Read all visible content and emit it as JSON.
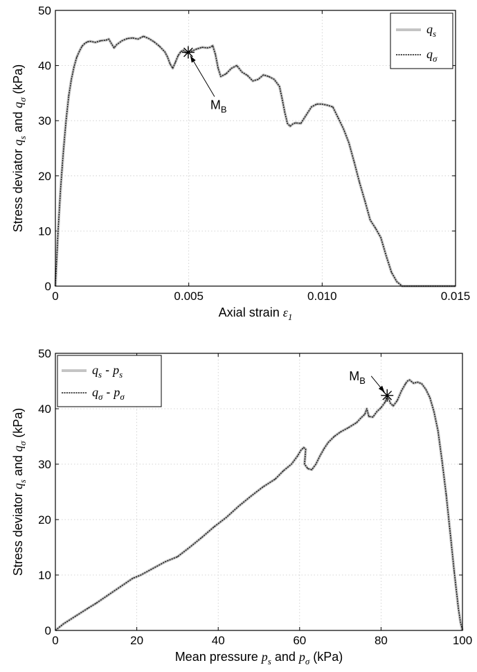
{
  "chart_data": [
    {
      "type": "line",
      "xlabel_text": "Axial strain ",
      "xlabel_symbol": "ε",
      "xlabel_sub": "1",
      "ylabel_parts": [
        "Stress deviator ",
        "q",
        "s",
        " and ",
        "q",
        "σ",
        " (kPa)"
      ],
      "xlim": [
        0,
        0.015
      ],
      "ylim": [
        0,
        50
      ],
      "x_ticks": [
        0,
        0.005,
        0.01,
        0.015
      ],
      "x_tick_labels": [
        "0",
        "0.005",
        "0.010",
        "0.015"
      ],
      "y_ticks": [
        0,
        10,
        20,
        30,
        40,
        50
      ],
      "y_tick_labels": [
        "0",
        "10",
        "20",
        "30",
        "40",
        "50"
      ],
      "grid": true,
      "legend_position": "top-right",
      "legend": [
        {
          "sym": "q",
          "sub": "s",
          "style": "solid-gray"
        },
        {
          "sym": "q",
          "sub": "σ",
          "style": "dotted-black"
        }
      ],
      "annotation": {
        "text": "M",
        "sub": "B",
        "x": 0.00498,
        "y": 42.4
      },
      "series": [
        {
          "name": "q_s / q_σ",
          "x": [
            0,
            0.0001,
            0.0002,
            0.0003,
            0.0004,
            0.0005,
            0.0006,
            0.0007,
            0.0008,
            0.0009,
            0.001,
            0.0011,
            0.0012,
            0.0013,
            0.0015,
            0.0017,
            0.0019,
            0.002,
            0.0021,
            0.0022,
            0.0023,
            0.0025,
            0.0027,
            0.0029,
            0.0031,
            0.0033,
            0.0035,
            0.0037,
            0.0039,
            0.0041,
            0.0042,
            0.0043,
            0.0044,
            0.0045,
            0.0046,
            0.0047,
            0.0048,
            0.0049,
            0.00498,
            0.0051,
            0.0053,
            0.0055,
            0.0057,
            0.0058,
            0.0059,
            0.006,
            0.0061,
            0.0062,
            0.0064,
            0.0066,
            0.0068,
            0.007,
            0.0072,
            0.0074,
            0.0076,
            0.0078,
            0.008,
            0.0082,
            0.0084,
            0.0085,
            0.0086,
            0.0087,
            0.0088,
            0.0089,
            0.009,
            0.0092,
            0.0094,
            0.0096,
            0.0098,
            0.01,
            0.0102,
            0.0104,
            0.0106,
            0.0108,
            0.011,
            0.0112,
            0.0114,
            0.0116,
            0.0118,
            0.012,
            0.0122,
            0.0124,
            0.0126,
            0.0128,
            0.013,
            0.0135,
            0.014,
            0.015
          ],
          "y": [
            0,
            10,
            18,
            24.5,
            30,
            34.5,
            37.5,
            39.8,
            41.5,
            42.6,
            43.5,
            44.0,
            44.3,
            44.4,
            44.2,
            44.5,
            44.6,
            44.8,
            44.0,
            43.2,
            43.8,
            44.5,
            44.9,
            45.0,
            44.8,
            45.3,
            44.9,
            44.3,
            43.5,
            42.5,
            41.6,
            40.3,
            39.5,
            40.6,
            41.8,
            42.5,
            42.8,
            42.3,
            42.4,
            42.6,
            43.0,
            43.3,
            43.2,
            43.3,
            43.6,
            42.0,
            39.5,
            38.0,
            38.5,
            39.5,
            40.0,
            38.8,
            38.2,
            37.2,
            37.5,
            38.3,
            38.0,
            37.5,
            36.2,
            34.0,
            31.5,
            29.5,
            29.0,
            29.4,
            29.6,
            29.5,
            31.0,
            32.5,
            33.0,
            33.0,
            32.8,
            32.5,
            30.5,
            28.5,
            26.0,
            22.5,
            18.8,
            15.5,
            12.0,
            10.5,
            8.8,
            5.5,
            2.5,
            0.8,
            0,
            0,
            0,
            0
          ]
        }
      ]
    },
    {
      "type": "line",
      "xlabel_text": "Mean pressure ",
      "xlabel_parts": [
        "Mean pressure ",
        "p",
        "s",
        " and  ",
        "p",
        "σ",
        " (kPa)"
      ],
      "ylabel_parts": [
        "Stress deviator ",
        "q",
        "s",
        " and ",
        "q",
        "σ",
        " (kPa)"
      ],
      "xlim": [
        0,
        100
      ],
      "ylim": [
        0,
        50
      ],
      "x_ticks": [
        0,
        20,
        40,
        60,
        80,
        100
      ],
      "x_tick_labels": [
        "0",
        "20",
        "40",
        "60",
        "80",
        "100"
      ],
      "y_ticks": [
        0,
        10,
        20,
        30,
        40,
        50
      ],
      "y_tick_labels": [
        "0",
        "10",
        "20",
        "30",
        "40",
        "50"
      ],
      "grid": true,
      "legend_position": "top-left",
      "legend": [
        {
          "sym": "q",
          "sub": "s",
          "sym2": "p",
          "sub2": "s",
          "style": "solid-gray"
        },
        {
          "sym": "q",
          "sub": "σ",
          "sym2": "p",
          "sub2": "σ",
          "style": "dotted-black"
        }
      ],
      "annotation": {
        "text": "M",
        "sub": "B",
        "x": 81.5,
        "y": 42.4
      },
      "series": [
        {
          "name": "q - p",
          "x": [
            0,
            2,
            5,
            8,
            10,
            13,
            16,
            19,
            21,
            24,
            27,
            30,
            33,
            36,
            39,
            42,
            45,
            48,
            51,
            54,
            56,
            58,
            59.5,
            60.3,
            61,
            61.5,
            61.2,
            62,
            63,
            64,
            65,
            66,
            67,
            68.5,
            70,
            72,
            74,
            75,
            76,
            76.5,
            77,
            78,
            79,
            80,
            81,
            81.5,
            82.3,
            83,
            84,
            85,
            86,
            86.5,
            87,
            88,
            89,
            90,
            91,
            92,
            93,
            94,
            95,
            96,
            97,
            98,
            99,
            99.5,
            100
          ],
          "y": [
            0,
            1.2,
            2.6,
            4.0,
            4.9,
            6.4,
            7.9,
            9.4,
            10.0,
            11.2,
            12.4,
            13.3,
            15.0,
            16.8,
            18.7,
            20.4,
            22.4,
            24.2,
            25.9,
            27.3,
            28.8,
            30.0,
            31.5,
            32.5,
            33.0,
            32.7,
            30.0,
            29.2,
            29.0,
            30.0,
            31.5,
            32.8,
            33.9,
            35.0,
            35.8,
            36.6,
            37.5,
            38.3,
            39.0,
            40.0,
            38.6,
            38.5,
            39.5,
            40.2,
            41.2,
            42.4,
            41.0,
            40.5,
            41.5,
            43.2,
            44.5,
            45.0,
            45.2,
            44.6,
            44.8,
            44.5,
            43.5,
            42.0,
            39.5,
            36.0,
            30.5,
            24.5,
            17.5,
            10.5,
            4.0,
            1.5,
            0
          ]
        }
      ]
    }
  ]
}
